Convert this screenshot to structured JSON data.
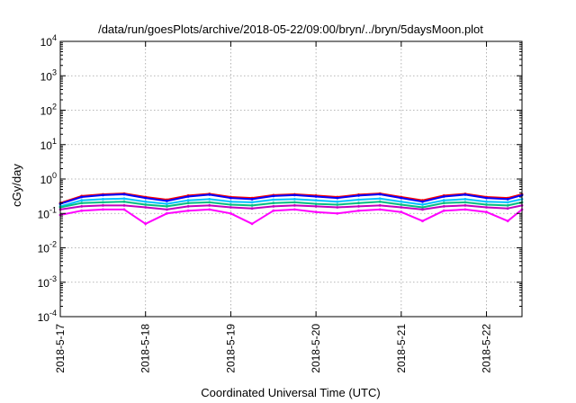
{
  "chart_data": {
    "type": "line",
    "title": "/data/run/goesPlots/archive/2018-05-22/09:00/bryn/../bryn/5daysMoon.plot",
    "xlabel": "Coordinated Universal Time (UTC)",
    "ylabel": "cGy/day",
    "xlim": [
      "2018-05-17",
      "2018-05-22 10:00"
    ],
    "ylim": [
      0.0001,
      10000
    ],
    "yscale": "log",
    "grid": true,
    "legend": "none",
    "x_ticks": [
      "2018-5-17",
      "2018-5-18",
      "2018-5-19",
      "2018-5-20",
      "2018-5-21",
      "2018-5-22"
    ],
    "y_ticks": [
      {
        "base": "10",
        "exp": "-4",
        "value": 0.0001
      },
      {
        "base": "10",
        "exp": "-3",
        "value": 0.001
      },
      {
        "base": "10",
        "exp": "-2",
        "value": 0.01
      },
      {
        "base": "10",
        "exp": "-1",
        "value": 0.1
      },
      {
        "base": "10",
        "exp": "0",
        "value": 1
      },
      {
        "base": "10",
        "exp": "1",
        "value": 10
      },
      {
        "base": "10",
        "exp": "2",
        "value": 100
      },
      {
        "base": "10",
        "exp": "3",
        "value": 1000
      },
      {
        "base": "10",
        "exp": "4",
        "value": 10000
      }
    ],
    "series": [
      {
        "color": "#ff0000",
        "x": [
          "2018-05-17",
          "2018-05-17 06:00",
          "2018-05-17 12:00",
          "2018-05-17 18:00",
          "2018-05-18",
          "2018-05-18 06:00",
          "2018-05-18 12:00",
          "2018-05-18 18:00",
          "2018-05-19",
          "2018-05-19 06:00",
          "2018-05-19 12:00",
          "2018-05-19 18:00",
          "2018-05-20",
          "2018-05-20 06:00",
          "2018-05-20 12:00",
          "2018-05-20 18:00",
          "2018-05-21",
          "2018-05-21 06:00",
          "2018-05-21 12:00",
          "2018-05-21 18:00",
          "2018-05-22",
          "2018-05-22 06:00",
          "2018-05-22 10:00"
        ],
        "values": [
          0.2,
          0.32,
          0.36,
          0.38,
          0.3,
          0.25,
          0.33,
          0.37,
          0.3,
          0.28,
          0.34,
          0.36,
          0.33,
          0.3,
          0.35,
          0.38,
          0.3,
          0.24,
          0.33,
          0.37,
          0.3,
          0.28,
          0.36
        ]
      },
      {
        "color": "#0000ff",
        "x": [
          "2018-05-17",
          "2018-05-17 06:00",
          "2018-05-17 12:00",
          "2018-05-17 18:00",
          "2018-05-18",
          "2018-05-18 06:00",
          "2018-05-18 12:00",
          "2018-05-18 18:00",
          "2018-05-19",
          "2018-05-19 06:00",
          "2018-05-19 12:00",
          "2018-05-19 18:00",
          "2018-05-20",
          "2018-05-20 06:00",
          "2018-05-20 12:00",
          "2018-05-20 18:00",
          "2018-05-21",
          "2018-05-21 06:00",
          "2018-05-21 12:00",
          "2018-05-21 18:00",
          "2018-05-22",
          "2018-05-22 06:00",
          "2018-05-22 10:00"
        ],
        "values": [
          0.19,
          0.3,
          0.34,
          0.36,
          0.28,
          0.23,
          0.31,
          0.35,
          0.28,
          0.26,
          0.32,
          0.34,
          0.31,
          0.28,
          0.33,
          0.36,
          0.28,
          0.22,
          0.31,
          0.35,
          0.28,
          0.26,
          0.34
        ]
      },
      {
        "color": "#00c0ff",
        "x": [
          "2018-05-17",
          "2018-05-17 06:00",
          "2018-05-17 12:00",
          "2018-05-17 18:00",
          "2018-05-18",
          "2018-05-18 06:00",
          "2018-05-18 12:00",
          "2018-05-18 18:00",
          "2018-05-19",
          "2018-05-19 06:00",
          "2018-05-19 12:00",
          "2018-05-19 18:00",
          "2018-05-20",
          "2018-05-20 06:00",
          "2018-05-20 12:00",
          "2018-05-20 18:00",
          "2018-05-21",
          "2018-05-21 06:00",
          "2018-05-21 12:00",
          "2018-05-21 18:00",
          "2018-05-22",
          "2018-05-22 06:00",
          "2018-05-22 10:00"
        ],
        "values": [
          0.16,
          0.24,
          0.26,
          0.27,
          0.22,
          0.19,
          0.24,
          0.26,
          0.22,
          0.21,
          0.25,
          0.26,
          0.24,
          0.22,
          0.25,
          0.27,
          0.22,
          0.18,
          0.24,
          0.26,
          0.22,
          0.21,
          0.26
        ]
      },
      {
        "color": "#00c080",
        "x": [
          "2018-05-17",
          "2018-05-17 06:00",
          "2018-05-17 12:00",
          "2018-05-17 18:00",
          "2018-05-18",
          "2018-05-18 06:00",
          "2018-05-18 12:00",
          "2018-05-18 18:00",
          "2018-05-19",
          "2018-05-19 06:00",
          "2018-05-19 12:00",
          "2018-05-19 18:00",
          "2018-05-20",
          "2018-05-20 06:00",
          "2018-05-20 12:00",
          "2018-05-20 18:00",
          "2018-05-21",
          "2018-05-21 06:00",
          "2018-05-21 12:00",
          "2018-05-21 18:00",
          "2018-05-22",
          "2018-05-22 06:00",
          "2018-05-22 10:00"
        ],
        "values": [
          0.15,
          0.2,
          0.21,
          0.22,
          0.18,
          0.16,
          0.2,
          0.21,
          0.18,
          0.17,
          0.2,
          0.21,
          0.19,
          0.18,
          0.2,
          0.22,
          0.18,
          0.15,
          0.2,
          0.21,
          0.18,
          0.17,
          0.21
        ]
      },
      {
        "color": "#c000c0",
        "x": [
          "2018-05-17",
          "2018-05-17 06:00",
          "2018-05-17 12:00",
          "2018-05-17 18:00",
          "2018-05-18",
          "2018-05-18 06:00",
          "2018-05-18 12:00",
          "2018-05-18 18:00",
          "2018-05-19",
          "2018-05-19 06:00",
          "2018-05-19 12:00",
          "2018-05-19 18:00",
          "2018-05-20",
          "2018-05-20 06:00",
          "2018-05-20 12:00",
          "2018-05-20 18:00",
          "2018-05-21",
          "2018-05-21 06:00",
          "2018-05-21 12:00",
          "2018-05-21 18:00",
          "2018-05-22",
          "2018-05-22 06:00",
          "2018-05-22 10:00"
        ],
        "values": [
          0.13,
          0.16,
          0.17,
          0.17,
          0.15,
          0.13,
          0.16,
          0.17,
          0.15,
          0.14,
          0.16,
          0.17,
          0.16,
          0.15,
          0.16,
          0.17,
          0.15,
          0.13,
          0.16,
          0.17,
          0.15,
          0.14,
          0.17
        ]
      },
      {
        "color": "#ff00ff",
        "x": [
          "2018-05-17",
          "2018-05-17 06:00",
          "2018-05-17 12:00",
          "2018-05-17 18:00",
          "2018-05-18",
          "2018-05-18 06:00",
          "2018-05-18 12:00",
          "2018-05-18 18:00",
          "2018-05-19",
          "2018-05-19 06:00",
          "2018-05-19 12:00",
          "2018-05-19 18:00",
          "2018-05-20",
          "2018-05-20 06:00",
          "2018-05-20 12:00",
          "2018-05-20 18:00",
          "2018-05-21",
          "2018-05-21 06:00",
          "2018-05-21 12:00",
          "2018-05-21 18:00",
          "2018-05-22",
          "2018-05-22 06:00",
          "2018-05-22 10:00"
        ],
        "values": [
          0.09,
          0.12,
          0.13,
          0.13,
          0.05,
          0.1,
          0.12,
          0.13,
          0.1,
          0.05,
          0.12,
          0.13,
          0.11,
          0.1,
          0.12,
          0.13,
          0.11,
          0.06,
          0.12,
          0.13,
          0.11,
          0.06,
          0.13
        ]
      }
    ]
  }
}
